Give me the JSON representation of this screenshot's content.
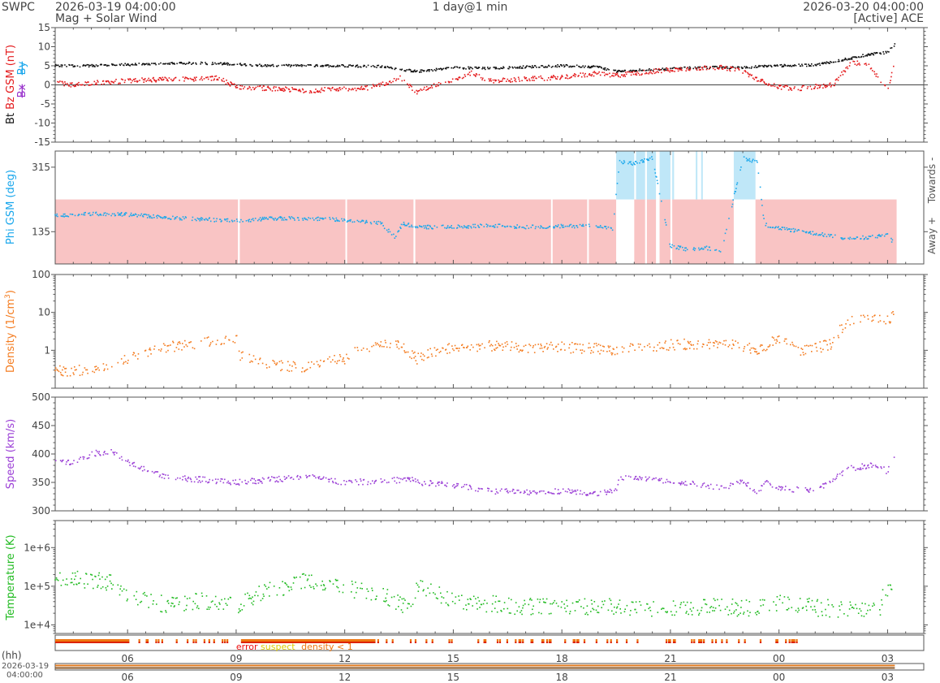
{
  "header": {
    "org": "SWPC",
    "start_time": "2026-03-19 04:00:00",
    "subtitle": "Mag + Solar Wind",
    "resolution": "1 day@1 min",
    "end_time": "2026-03-20 04:00:00",
    "source": "[Active] ACE"
  },
  "time_axis": {
    "start": "2026-03-19 04:00:00",
    "end": "2026-03-20 04:00:00",
    "tick_labels": [
      "06",
      "09",
      "12",
      "15",
      "18",
      "21",
      "00",
      "03"
    ],
    "tick_hours": [
      6,
      9,
      12,
      15,
      18,
      21,
      24,
      27
    ],
    "hours_label": "(hh)",
    "date_label": "2026-03-19",
    "date_time_label": "04:00:00"
  },
  "flags": {
    "legend": [
      {
        "label": "error",
        "color": "#ee1111"
      },
      {
        "label": "suspect",
        "color": "#ddcc00"
      },
      {
        "label": "density < 1",
        "color": "#ee7711"
      }
    ]
  },
  "colors": {
    "bt": "#111111",
    "bz": "#e41a1c",
    "bx": "#9933cc",
    "by": "#1aa7ec",
    "phi": "#1aa7ec",
    "away": "#f9c4c4",
    "towards": "#bfe7f8",
    "density": "#f47c20",
    "speed": "#9b3fd6",
    "temperature": "#22bb22"
  },
  "chart_data": [
    {
      "type": "scatter",
      "panel": "mag",
      "ylabel_parts": [
        "Bt",
        "Bz GSM (nT)",
        "Bx",
        "By"
      ],
      "ylim": [
        -15,
        15
      ],
      "yticks": [
        "15",
        "10",
        "5",
        "0",
        "-5",
        "-10",
        "-15"
      ],
      "zero_line": true,
      "series": [
        {
          "name": "Bt",
          "x_hours": [
            4,
            5,
            6,
            7,
            8,
            9,
            10,
            11,
            12,
            13,
            13.6,
            14,
            15,
            16,
            17,
            18,
            19,
            19.5,
            20,
            21,
            22,
            23,
            23.5,
            24,
            25,
            26,
            26.5,
            27,
            27.2
          ],
          "values": [
            5,
            5,
            5.3,
            5.5,
            5.7,
            5.4,
            5,
            5,
            5,
            4.8,
            4,
            3.5,
            4.5,
            4.3,
            4.7,
            5,
            4.7,
            3.5,
            3.8,
            4.2,
            4.6,
            4.5,
            4.8,
            5,
            5.2,
            7,
            8,
            8.5,
            10.5
          ]
        },
        {
          "name": "Bz",
          "x_hours": [
            4,
            4.5,
            5,
            6,
            7,
            8,
            8.5,
            9,
            10,
            11,
            12,
            12.5,
            13,
            13.5,
            14,
            14.5,
            15,
            15.5,
            16,
            17,
            18,
            19,
            19.5,
            20,
            21,
            22,
            22.5,
            23,
            23.5,
            24,
            24.5,
            25,
            25.5,
            26,
            26.5,
            27,
            27.2
          ],
          "values": [
            0.5,
            0,
            0.5,
            1,
            1.5,
            1.5,
            1.8,
            -0.5,
            -1,
            -1.5,
            -1,
            -1,
            0,
            2,
            -2,
            0,
            1,
            3,
            1,
            1.5,
            2,
            3,
            2.5,
            3,
            4,
            4.5,
            4.5,
            3.5,
            1,
            -0.5,
            -1,
            -0.5,
            0,
            6,
            5,
            -1.5,
            6
          ]
        }
      ]
    },
    {
      "type": "scatter",
      "panel": "phi",
      "ylabel": "Phi GSM (deg)",
      "ylim": [
        45,
        360
      ],
      "yticks": [
        "315",
        "135"
      ],
      "right_labels": [
        "Towards -",
        "Away +"
      ],
      "series": [
        {
          "name": "Phi",
          "x_hours": [
            4,
            5,
            6,
            7,
            8,
            9,
            10,
            11,
            12,
            13,
            13.4,
            13.6,
            14,
            15,
            16,
            17,
            18,
            19,
            19.4,
            19.6,
            20,
            20.5,
            21,
            21.5,
            22,
            22.4,
            23,
            23.4,
            23.6,
            24,
            25,
            26,
            26.5,
            27,
            27.2
          ],
          "values": [
            180,
            185,
            183,
            175,
            170,
            165,
            172,
            172,
            168,
            158,
            120,
            158,
            148,
            148,
            152,
            148,
            150,
            152,
            140,
            330,
            325,
            340,
            95,
            85,
            90,
            75,
            340,
            330,
            155,
            145,
            130,
            115,
            120,
            125,
            100
          ]
        }
      ]
    },
    {
      "type": "scatter",
      "panel": "density",
      "ylabel": "Density (1/cm",
      "ylabel_sup": "3",
      "ylabel_tail": ")",
      "ylim": [
        0.1,
        100
      ],
      "log": true,
      "yticks": [
        "100",
        "10",
        "1"
      ],
      "series": [
        {
          "name": "Density",
          "x_hours": [
            4,
            5,
            6,
            7,
            8,
            9,
            9.1,
            10,
            11,
            12,
            13,
            13.5,
            14,
            15,
            16,
            17,
            18,
            19,
            19.5,
            20,
            21,
            22,
            23,
            23.5,
            24,
            24.5,
            25,
            25.5,
            26,
            27,
            27.2
          ],
          "values": [
            0.28,
            0.3,
            0.6,
            1.2,
            1.5,
            2.2,
            0.7,
            0.4,
            0.35,
            0.6,
            1.6,
            1.3,
            0.6,
            1.2,
            1.3,
            1.2,
            1.2,
            1.1,
            0.9,
            1.2,
            1.4,
            1.5,
            1.3,
            1.0,
            2.0,
            1.0,
            1.1,
            1.5,
            6.5,
            6.0,
            9.5
          ]
        }
      ]
    },
    {
      "type": "scatter",
      "panel": "speed",
      "ylabel": "Speed (km/s)",
      "ylim": [
        300,
        500
      ],
      "yticks": [
        "500",
        "450",
        "400",
        "350",
        "300"
      ],
      "series": [
        {
          "name": "Speed",
          "x_hours": [
            4,
            4.5,
            5,
            5.5,
            6,
            7,
            8,
            9,
            10,
            11,
            12,
            13,
            13.9,
            14,
            15,
            16,
            17,
            18,
            19,
            19.5,
            19.6,
            20,
            21,
            22,
            22.5,
            23,
            23.4,
            23.6,
            24,
            25,
            26,
            26.5,
            27,
            27.2
          ],
          "values": [
            390,
            385,
            400,
            405,
            385,
            360,
            355,
            350,
            355,
            360,
            350,
            352,
            356,
            350,
            345,
            335,
            333,
            335,
            330,
            335,
            360,
            358,
            352,
            345,
            340,
            355,
            330,
            350,
            340,
            335,
            375,
            380,
            370,
            400
          ]
        }
      ]
    },
    {
      "type": "scatter",
      "panel": "temperature",
      "ylabel": "Temperature (K)",
      "ylim": [
        6000,
        5000000
      ],
      "log": true,
      "yticks": [
        "1e+6",
        "1e+5",
        "1e+4"
      ],
      "series": [
        {
          "name": "Temperature",
          "x_hours": [
            4,
            5,
            5.5,
            6,
            7,
            8,
            9,
            10,
            11,
            12,
            13,
            13.8,
            14,
            15,
            16,
            17,
            18,
            19,
            20,
            21,
            22,
            23,
            24,
            25,
            26,
            26.8,
            27,
            27.2
          ],
          "values": [
            160000,
            140000,
            130000,
            60000,
            35000,
            40000,
            30000,
            80000,
            140000,
            90000,
            60000,
            25000,
            100000,
            40000,
            35000,
            30000,
            32000,
            30000,
            25000,
            28000,
            30000,
            27000,
            35000,
            28000,
            25000,
            28000,
            90000,
            40000
          ]
        }
      ]
    }
  ]
}
